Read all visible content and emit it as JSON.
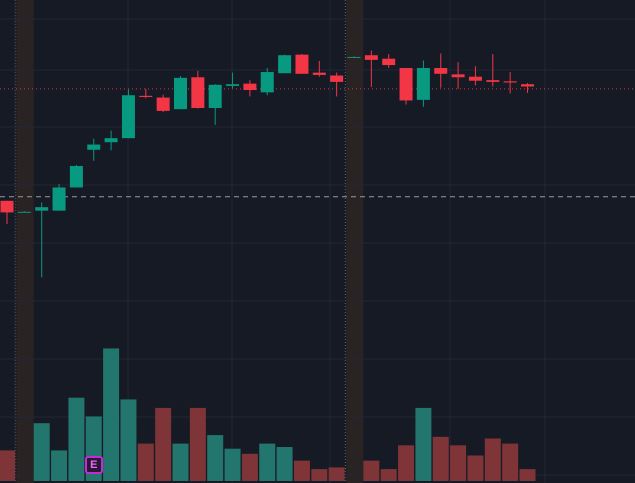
{
  "colors": {
    "background": "#161a25",
    "grid": "#232734",
    "up": "#089981",
    "down": "#f23645",
    "up_volume": "#22766d",
    "down_volume": "#7f3437",
    "session_band": "#3a2c22",
    "price_line": "#f23645",
    "crosshair": "#9598a1",
    "earnings": "#c42bd6"
  },
  "earnings_marker": {
    "label": "E",
    "candle_index": 5
  },
  "chart_data": {
    "type": "candlestick",
    "title": "",
    "x_ticks_visible": false,
    "y_ticks_visible": false,
    "grid": true,
    "current_price_line": 93.3,
    "crosshair_horizontal": 74.7,
    "session_breaks": [
      0.5,
      19.5
    ],
    "ylim": [
      50,
      100
    ],
    "candles": [
      {
        "o": 74,
        "h": 74,
        "l": 70,
        "c": 72
      },
      {
        "o": 72,
        "h": 72.2,
        "l": 72,
        "c": 72.1
      },
      {
        "o": 72.3,
        "h": 73.7,
        "l": 60.8,
        "c": 72.9
      },
      {
        "o": 72.3,
        "h": 76.9,
        "l": 72.3,
        "c": 76.3
      },
      {
        "o": 76.3,
        "h": 80.2,
        "l": 76.3,
        "c": 80
      },
      {
        "o": 82.8,
        "h": 84.7,
        "l": 80.9,
        "c": 83.7
      },
      {
        "o": 84.1,
        "h": 86.1,
        "l": 82.7,
        "c": 84.8
      },
      {
        "o": 84.8,
        "h": 93.2,
        "l": 84.8,
        "c": 92.2
      },
      {
        "o": 92.1,
        "h": 93.3,
        "l": 91.7,
        "c": 91.9
      },
      {
        "o": 91.8,
        "h": 92.3,
        "l": 89.3,
        "c": 89.5
      },
      {
        "o": 89.8,
        "h": 95.5,
        "l": 89.8,
        "c": 95.2
      },
      {
        "o": 95.3,
        "h": 96.4,
        "l": 89.9,
        "c": 90
      },
      {
        "o": 90,
        "h": 94.1,
        "l": 87.1,
        "c": 94
      },
      {
        "o": 93.8,
        "h": 96.1,
        "l": 93.4,
        "c": 94.1
      },
      {
        "o": 94.2,
        "h": 94.8,
        "l": 92,
        "c": 93.1
      },
      {
        "o": 92.7,
        "h": 96.9,
        "l": 92.2,
        "c": 96.2
      },
      {
        "o": 96,
        "h": 99.2,
        "l": 96,
        "c": 99.1
      },
      {
        "o": 99.2,
        "h": 99.3,
        "l": 95.9,
        "c": 95.9
      },
      {
        "o": 96.1,
        "h": 98.1,
        "l": 95.4,
        "c": 95.7
      },
      {
        "o": 95.6,
        "h": 96.1,
        "l": 92,
        "c": 94.5
      },
      {
        "o": 98.8,
        "h": 98.9,
        "l": 98.7,
        "c": 98.8
      },
      {
        "o": 99.1,
        "h": 99.9,
        "l": 93.6,
        "c": 98.3
      },
      {
        "o": 98.5,
        "h": 99.3,
        "l": 96.9,
        "c": 97.4
      },
      {
        "o": 96.9,
        "h": 96.9,
        "l": 90.6,
        "c": 91.3
      },
      {
        "o": 91.4,
        "h": 98.2,
        "l": 90.2,
        "c": 96.9
      },
      {
        "o": 96.9,
        "h": 99.4,
        "l": 93.5,
        "c": 95.9
      },
      {
        "o": 95.8,
        "h": 97.9,
        "l": 93.3,
        "c": 95.3
      },
      {
        "o": 95.4,
        "h": 97.2,
        "l": 93.9,
        "c": 94.7
      },
      {
        "o": 94.8,
        "h": 99.3,
        "l": 93.7,
        "c": 94.5
      },
      {
        "o": 94.6,
        "h": 96.2,
        "l": 92.5,
        "c": 94.4
      },
      {
        "o": 94.1,
        "h": 94.3,
        "l": 92.6,
        "c": 93.7
      }
    ],
    "volume": [
      18,
      0,
      34,
      18,
      49,
      38,
      78,
      48,
      22,
      43,
      22,
      43,
      27,
      19,
      16,
      22,
      20,
      12,
      7,
      8,
      0,
      12,
      7,
      21,
      43,
      26,
      21,
      15,
      25,
      22,
      7
    ]
  }
}
